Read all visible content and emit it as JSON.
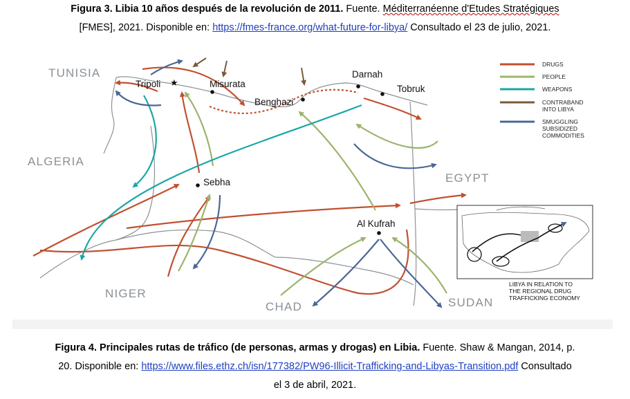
{
  "caption_top": {
    "fig_label": "Figura 3. Libia 10 años después de la revolución de 2011.",
    "source_prefix": " Fuente. ",
    "source_name": "Méditerranéenne d'Etudes Stratégiques",
    "line2_prefix": "[FMES], 2021. Disponible en: ",
    "link": "https://fmes-france.org/what-future-for-libya/",
    "line2_suffix": " Consultado el 23 de julio, 2021."
  },
  "map": {
    "countries": {
      "tunisia": "TUNISIA",
      "algeria": "ALGERIA",
      "niger": "NIGER",
      "chad": "CHAD",
      "sudan": "SUDAN",
      "egypt": "EGYPT"
    },
    "cities": {
      "tripoli": "Tripoli",
      "misurata": "Misurata",
      "benghazi": "Benghazi",
      "darnah": "Darnah",
      "tobruk": "Tobruk",
      "sebha": "Sebha",
      "alkufrah": "Al Kufrah"
    },
    "colors": {
      "drugs": "#c0502f",
      "people": "#9bb46c",
      "weapons": "#1aa6a6",
      "contraband": "#7a5a3a",
      "smuggling": "#4a6796",
      "border": "#8c9296"
    },
    "legend": {
      "drugs": "DRUGS",
      "people": "PEOPLE",
      "weapons": "WEAPONS",
      "contraband_1": "CONTRABAND",
      "contraband_2": "INTO LIBYA",
      "smuggling_1": "SMUGGLING",
      "smuggling_2": "SUBSIDIZED",
      "smuggling_3": "COMMODITIES"
    },
    "inset": {
      "caption_1": "LIBYA IN RELATION TO",
      "caption_2": "THE REGIONAL DRUG",
      "caption_3": "TRAFFICKING ECONOMY"
    }
  },
  "caption_bottom": {
    "fig_label": "Figura 4. Principales rutas de tráfico (de personas, armas y drogas) en Libia.",
    "source_prefix": " Fuente. Shaw & Mangan, 2014, p.",
    "line2_prefix": "20. Disponible en: ",
    "link": "https://www.files.ethz.ch/isn/177382/PW96-Illicit-Trafficking-and-Libyas-Transition.pdf",
    "line2_suffix": " Consultado",
    "line3": "el 3 de abril, 2021."
  }
}
